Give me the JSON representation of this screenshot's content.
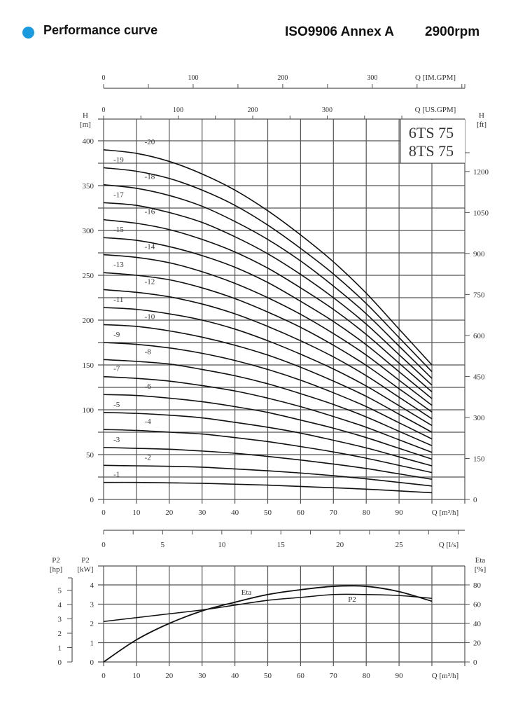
{
  "header": {
    "title": "Performance curve",
    "standard": "ISO9906 Annex A",
    "speed": "2900rpm",
    "bullet_color": "#1a9be0"
  },
  "model_box": {
    "line1": "6TS 75",
    "line2": "8TS 75"
  },
  "axes": {
    "im_gpm": {
      "label": "Q [IM.GPM]",
      "ticks": [
        "0",
        "100",
        "200",
        "300"
      ]
    },
    "us_gpm": {
      "label": "Q [US.GPM]",
      "ticks": [
        "0",
        "100",
        "200",
        "300"
      ]
    },
    "head_m": {
      "label_top": "H",
      "label_unit": "[m]",
      "ticks": [
        "0",
        "50",
        "100",
        "150",
        "200",
        "250",
        "300",
        "350",
        "400"
      ]
    },
    "head_ft": {
      "label_top": "H",
      "label_unit": "[ft]",
      "ticks": [
        "0",
        "150",
        "300",
        "450",
        "600",
        "750",
        "900",
        "1050",
        "1200"
      ]
    },
    "q_m3h": {
      "label": "Q [m³/h]",
      "ticks": [
        "0",
        "10",
        "20",
        "30",
        "40",
        "50",
        "60",
        "70",
        "80",
        "90"
      ]
    },
    "q_ls": {
      "label": "Q [l/s]",
      "ticks": [
        "0",
        "5",
        "10",
        "15",
        "20",
        "25"
      ]
    },
    "p2_hp": {
      "label_top": "P2",
      "label_unit": "[hp]",
      "ticks": [
        "0",
        "1",
        "2",
        "3",
        "4",
        "5"
      ]
    },
    "p2_kw": {
      "label_top": "P2",
      "label_unit": "[kW]",
      "ticks": [
        "0",
        "1",
        "2",
        "3",
        "4"
      ]
    },
    "eta": {
      "label_top": "Eta",
      "label_unit": "[%]",
      "ticks": [
        "0",
        "20",
        "40",
        "60",
        "80"
      ]
    }
  },
  "curve_labels": {
    "eta": "Eta",
    "p2": "P2"
  },
  "chart_data": [
    {
      "type": "line",
      "title": "Performance curve 6TS 75 / 8TS 75 — Head vs Flow (ISO9906 Annex A, 2900rpm)",
      "xlabel": "Q [m³/h]",
      "ylabel": "H [m]",
      "xlim": [
        0,
        100
      ],
      "ylim": [
        0,
        420
      ],
      "grid": true,
      "secondary_axes": {
        "x_top": [
          "Q [US.GPM]",
          "Q [IM.GPM]"
        ],
        "y_right": "H [ft]",
        "x_bottom2": "Q [l/s]"
      },
      "x": [
        0,
        10,
        20,
        30,
        40,
        50,
        60,
        70,
        80,
        90,
        100
      ],
      "series": [
        {
          "name": "-1",
          "values": [
            19,
            19,
            18.5,
            18,
            17,
            16,
            14.5,
            13,
            11.5,
            9.5,
            7.5
          ]
        },
        {
          "name": "-2",
          "values": [
            38,
            37.5,
            37,
            36,
            34,
            32,
            29.5,
            26.5,
            23,
            19,
            15
          ]
        },
        {
          "name": "-3",
          "values": [
            58,
            57,
            56,
            54,
            51.5,
            48,
            44,
            39.5,
            34.5,
            28.5,
            22.5
          ]
        },
        {
          "name": "-4",
          "values": [
            78,
            77,
            75,
            73,
            69,
            64.5,
            59,
            53,
            46,
            38,
            30
          ]
        },
        {
          "name": "-5",
          "values": [
            97,
            96,
            94,
            91,
            86,
            80.5,
            74,
            66,
            57.5,
            47.5,
            37.5
          ]
        },
        {
          "name": "-6",
          "values": [
            117,
            116,
            113,
            109,
            103.5,
            97,
            88.5,
            79.5,
            69,
            57,
            45
          ]
        },
        {
          "name": "-7",
          "values": [
            137,
            135,
            132,
            127,
            121,
            113,
            103.5,
            92.5,
            80.5,
            66.5,
            52.5
          ]
        },
        {
          "name": "-8",
          "values": [
            156,
            154,
            151,
            145,
            138,
            129,
            118,
            106,
            92,
            76,
            60
          ]
        },
        {
          "name": "-9",
          "values": [
            175,
            173,
            169,
            163,
            155,
            145,
            133,
            119,
            103.5,
            85.5,
            67.5
          ]
        },
        {
          "name": "-10",
          "values": [
            195,
            193,
            188,
            181,
            172,
            161,
            147.5,
            132,
            115,
            95,
            75
          ]
        },
        {
          "name": "-11",
          "values": [
            214,
            212,
            207,
            200,
            190,
            177,
            162,
            145.5,
            126.5,
            104.5,
            82.5
          ]
        },
        {
          "name": "-12",
          "values": [
            234,
            231,
            226,
            218,
            207,
            193,
            177,
            159,
            138,
            114,
            90
          ]
        },
        {
          "name": "-13",
          "values": [
            253,
            250,
            245,
            236,
            224,
            209,
            192,
            172,
            149.5,
            123.5,
            97.5
          ]
        },
        {
          "name": "-14",
          "values": [
            273,
            270,
            264,
            254,
            241,
            225,
            206.5,
            185,
            161,
            133,
            105
          ]
        },
        {
          "name": "-15",
          "values": [
            292,
            289,
            282,
            272,
            259,
            242,
            221,
            198.5,
            172.5,
            142.5,
            112.5
          ]
        },
        {
          "name": "-16",
          "values": [
            312,
            308,
            301,
            290,
            276,
            258,
            236,
            212,
            184,
            152,
            120
          ]
        },
        {
          "name": "-17",
          "values": [
            331,
            328,
            320,
            309,
            293,
            274,
            251,
            225,
            195.5,
            161.5,
            127.5
          ]
        },
        {
          "name": "-18",
          "values": [
            351,
            347,
            339,
            327,
            310,
            290,
            266,
            238,
            207,
            171,
            135
          ]
        },
        {
          "name": "-19",
          "values": [
            370,
            366,
            358,
            345,
            328,
            306,
            280,
            251.5,
            218.5,
            180.5,
            142.5
          ]
        },
        {
          "name": "-20",
          "values": [
            390,
            386,
            377,
            363,
            345,
            322,
            295,
            265,
            230,
            190,
            150
          ]
        }
      ]
    },
    {
      "type": "line",
      "title": "Power and efficiency",
      "xlabel": "Q [m³/h]",
      "ylabel": "P2 [kW]",
      "y2label": "Eta [%]",
      "xlim": [
        0,
        100
      ],
      "ylim": [
        0,
        4.5
      ],
      "y2lim": [
        0,
        90
      ],
      "grid": true,
      "x": [
        0,
        10,
        20,
        30,
        40,
        50,
        60,
        70,
        80,
        90,
        100
      ],
      "series": [
        {
          "name": "P2",
          "axis": "kW",
          "values": [
            2.1,
            2.3,
            2.5,
            2.7,
            2.95,
            3.2,
            3.35,
            3.5,
            3.5,
            3.45,
            3.3
          ]
        },
        {
          "name": "Eta",
          "axis": "%",
          "values": [
            0,
            23,
            40,
            53,
            62,
            70,
            75,
            78.5,
            78.5,
            73,
            63
          ]
        }
      ]
    }
  ]
}
